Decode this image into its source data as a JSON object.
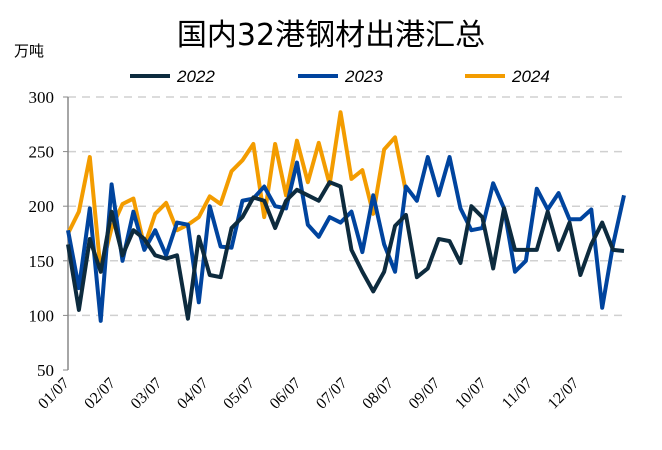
{
  "chart_data": {
    "type": "line",
    "title": "国内32港钢材出港汇总",
    "ylabel": "万吨",
    "xlabel": "",
    "ylim": [
      50,
      300
    ],
    "yticks": [
      50,
      100,
      150,
      200,
      250,
      300
    ],
    "grid": true,
    "legend_position": "top",
    "xtick_labels": [
      "01/07",
      "02/07",
      "03/07",
      "04/07",
      "05/07",
      "06/07",
      "07/07",
      "08/07",
      "09/07",
      "10/07",
      "11/07",
      "12/07"
    ],
    "series": [
      {
        "name": "2022",
        "color": "#0d2b3e",
        "values": [
          165,
          105,
          170,
          140,
          195,
          155,
          178,
          170,
          155,
          152,
          155,
          97,
          172,
          137,
          135,
          180,
          190,
          208,
          205,
          180,
          205,
          215,
          210,
          205,
          222,
          218,
          160,
          140,
          122,
          140,
          182,
          192,
          135,
          143,
          170,
          168,
          148,
          200,
          190,
          143,
          198,
          160,
          160,
          160,
          195,
          160,
          185,
          137,
          165,
          185,
          160,
          159
        ]
      },
      {
        "name": "2023",
        "color": "#00449e",
        "values": [
          178,
          125,
          198,
          95,
          220,
          150,
          195,
          160,
          178,
          155,
          185,
          183,
          112,
          200,
          163,
          162,
          205,
          207,
          218,
          200,
          198,
          240,
          183,
          172,
          190,
          185,
          195,
          158,
          210,
          165,
          140,
          218,
          205,
          245,
          210,
          245,
          198,
          178,
          180,
          221,
          198,
          140,
          150,
          216,
          197,
          212,
          188,
          188,
          197,
          107,
          165,
          210
        ]
      },
      {
        "name": "2024",
        "color": "#f39c00",
        "values": [
          175,
          195,
          245,
          140,
          180,
          202,
          207,
          163,
          193,
          203,
          178,
          183,
          190,
          209,
          202,
          232,
          242,
          257,
          190,
          257,
          210,
          260,
          222,
          258,
          220,
          286,
          225,
          233,
          193,
          252,
          263,
          213
        ]
      }
    ]
  }
}
